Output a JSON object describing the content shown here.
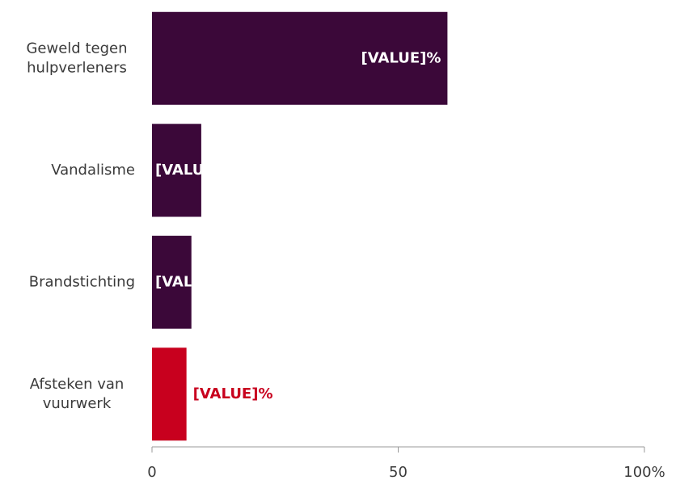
{
  "chart_data": {
    "type": "barh",
    "categories": [
      "Geweld tegen\nhulpverleners",
      "Vandalisme",
      "Brandstichting",
      "Afsteken van\nvuurwerk"
    ],
    "values": [
      60,
      10,
      8,
      7
    ],
    "value_labels": [
      "[VALUE]%",
      "[VALUE]%",
      "[VALUE]%",
      "[VALUE]%"
    ],
    "color": "#3b0839",
    "colors": [
      "#3b0839",
      "#3b0839",
      "#3b0839",
      "#c8001e"
    ],
    "xlim": [
      0,
      100
    ],
    "xticks": [
      0,
      50,
      {
        "value": 100,
        "label": "100%"
      }
    ]
  }
}
